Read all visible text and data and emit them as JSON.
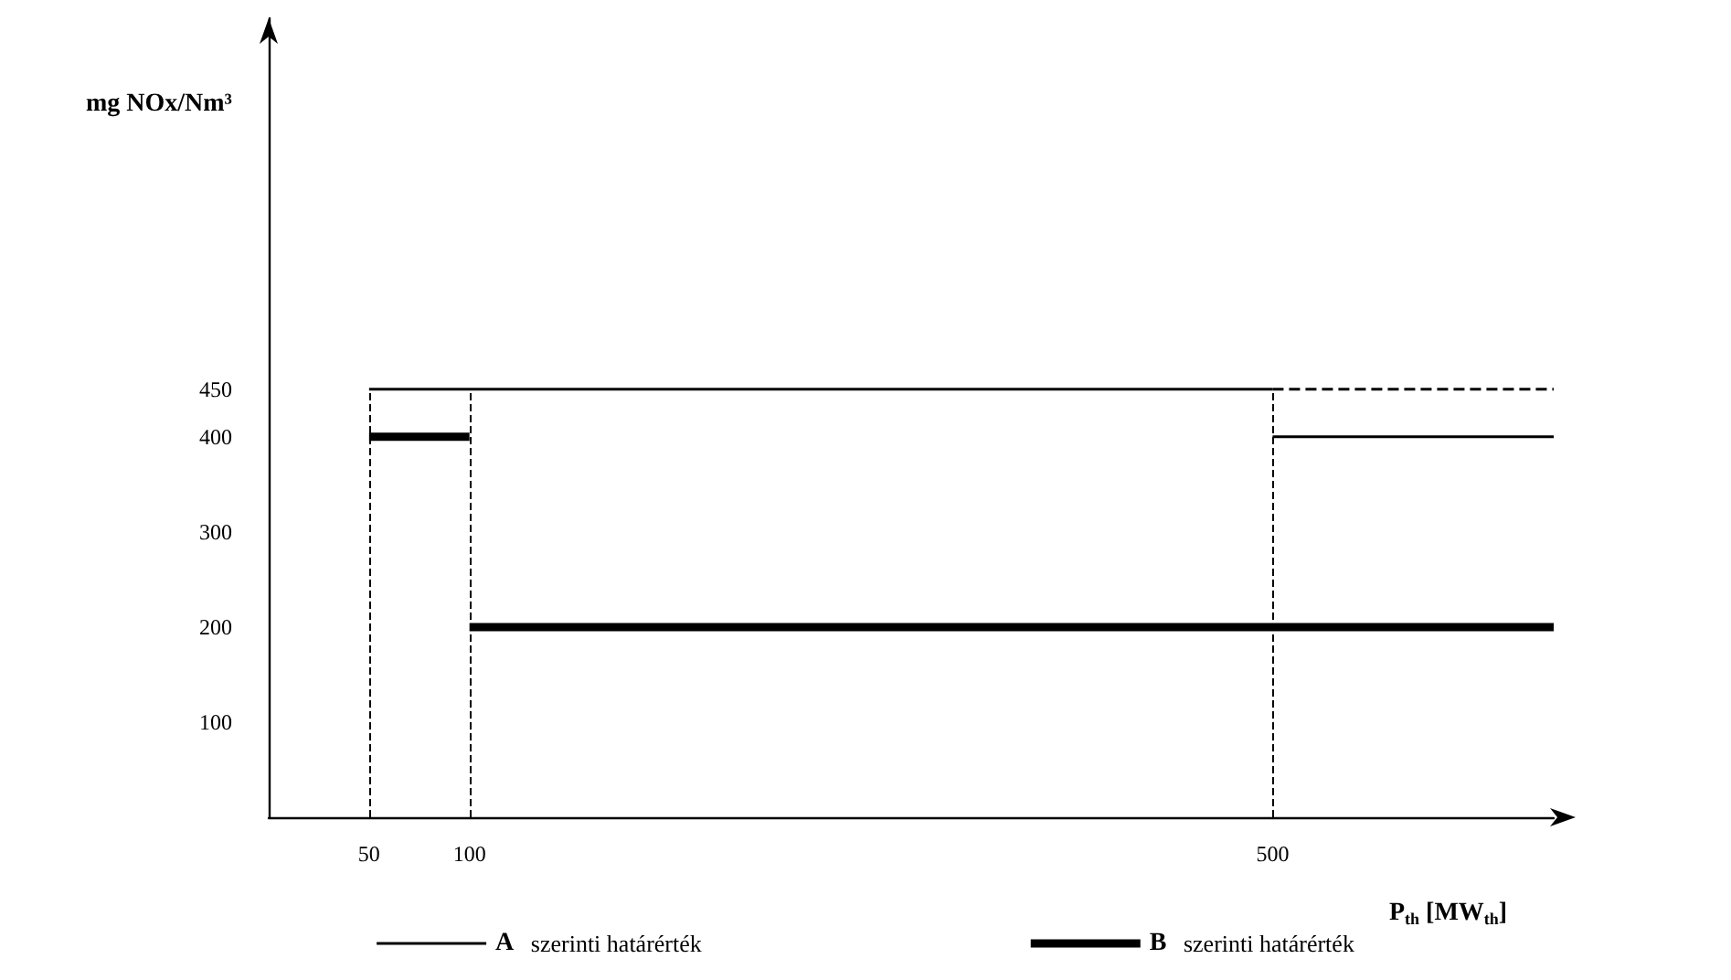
{
  "chart_data": {
    "type": "line",
    "xlabel": "P$_{th}$ [MW$_{th}$]",
    "ylabel": "mg NOx/Nm³",
    "xlim": [
      0,
      640
    ],
    "xticks": [
      50,
      100,
      500
    ],
    "ylim": [
      0,
      840
    ],
    "yticks": [
      100,
      200,
      300,
      400,
      450
    ],
    "series": [
      {
        "name": "A szerinti határérték",
        "color": "#000000",
        "x": [
          50,
          500
        ],
        "values": [
          450,
          450
        ]
      },
      {
        "color": "#000000",
        "line_style": "dashed",
        "x": [
          500,
          640
        ],
        "values": [
          450,
          450
        ]
      },
      {
        "color": "#000000",
        "x": [
          500,
          640
        ],
        "values": [
          400,
          400
        ]
      },
      {
        "name": "B szerinti határérték",
        "color": "#000000",
        "x": [
          50,
          100
        ],
        "values": [
          400,
          400
        ]
      },
      {
        "color": "#000000",
        "x": [
          100,
          640
        ],
        "values": [
          200,
          200
        ]
      }
    ],
    "ref_lines": [
      {
        "axis": "x",
        "value": 50,
        "line_style": "dashed",
        "color": "#000000"
      },
      {
        "axis": "x",
        "value": 100,
        "line_style": "dashed",
        "color": "#000000"
      },
      {
        "axis": "x",
        "value": 500,
        "line_style": "dashed",
        "color": "#000000"
      }
    ],
    "grid": false,
    "legend": "bottom",
    "marker": "none",
    "line_style": "solid"
  }
}
